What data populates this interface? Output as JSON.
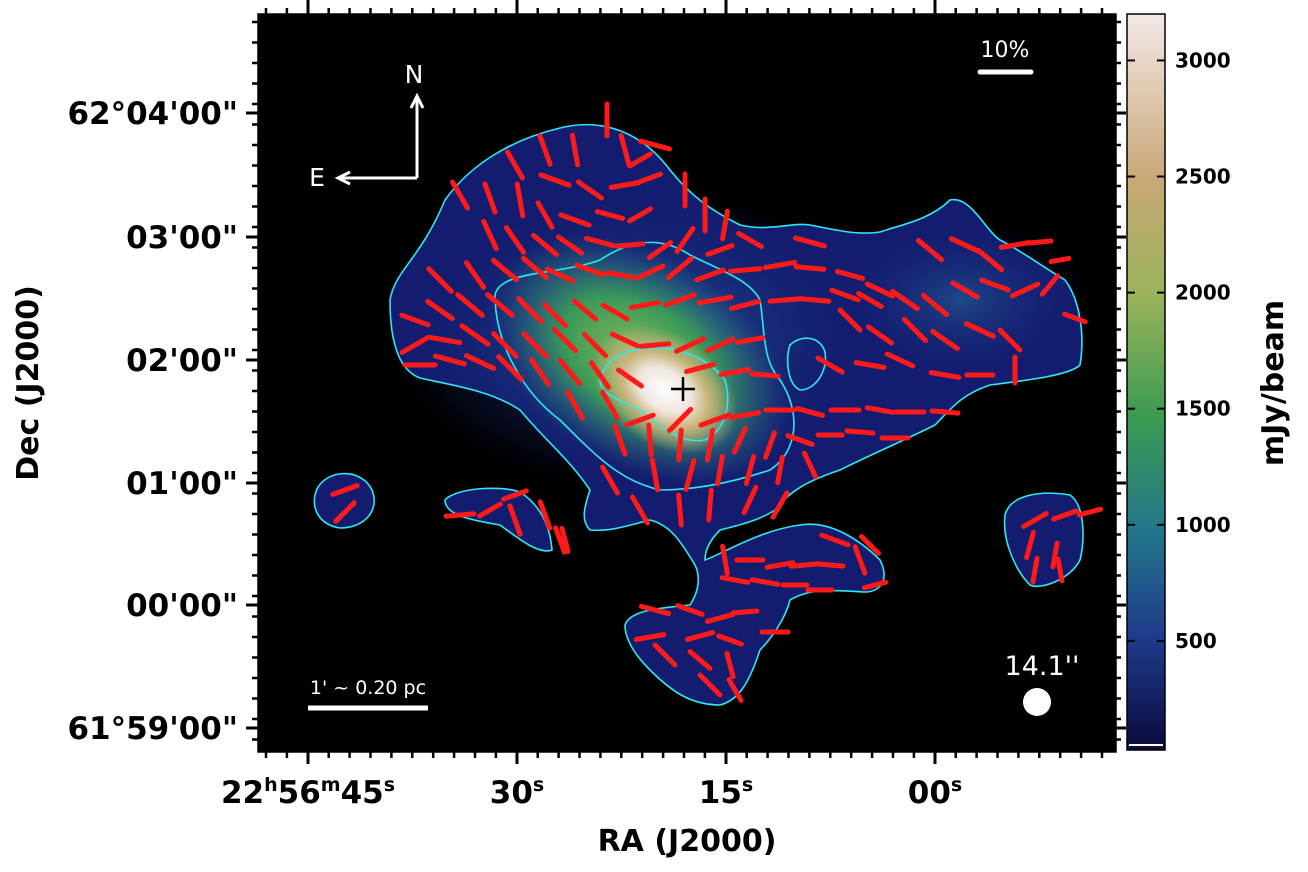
{
  "chart_data": {
    "type": "heatmap",
    "title": "",
    "xlabel": "RA (J2000)",
    "ylabel": "Dec (J2000)",
    "x_ticks": [
      {
        "h": "22",
        "m": "56",
        "s": "45"
      },
      {
        "s": "30"
      },
      {
        "s": "15"
      },
      {
        "s": "00"
      }
    ],
    "y_ticks": [
      "62°04'00\"",
      "03'00\"",
      "02'00\"",
      "01'00\"",
      "00'00\"",
      "61°59'00\""
    ],
    "colorbar": {
      "label": "mJy/beam",
      "ticks": [
        500,
        1000,
        1500,
        2000,
        2500,
        3000
      ],
      "range": [
        30,
        3200
      ],
      "colors": [
        "#0a0a3c",
        "#1f3a8c",
        "#23778a",
        "#3a9a52",
        "#9bb35a",
        "#c9a878",
        "#f3e8e6"
      ]
    },
    "annotations": {
      "compass_north": "N",
      "compass_east": "E",
      "vector_scale": "10%",
      "scale_bar": "1' ~ 0.20 pc",
      "beam": "14.1''"
    },
    "vector_color": "#ff1a1a",
    "contour_color": "#2ee8ee",
    "grid": false
  }
}
